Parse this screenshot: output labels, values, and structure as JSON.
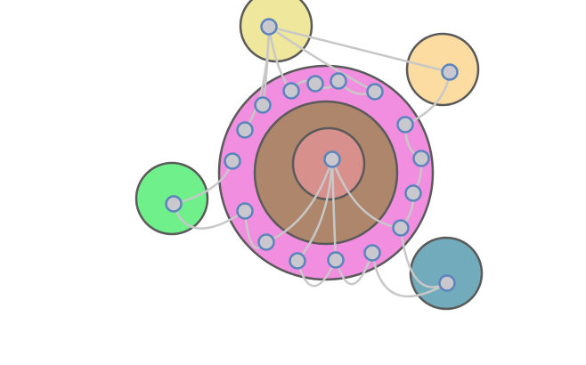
{
  "diagram": {
    "colors": {
      "background": "#ffffff",
      "ring_outer": "#f28ee0",
      "ring_middle": "#ae866c",
      "ring_inner": "#d7908c",
      "satellite_yellow": "#efe79c",
      "satellite_orange": "#fcdca0",
      "satellite_green": "#6ff08a",
      "satellite_teal": "#72abbb",
      "node_fill": "#c8c8ce",
      "node_stroke": "#5b84bd",
      "edge": "#c8c8c8",
      "outline": "#5a5a5a"
    }
  }
}
